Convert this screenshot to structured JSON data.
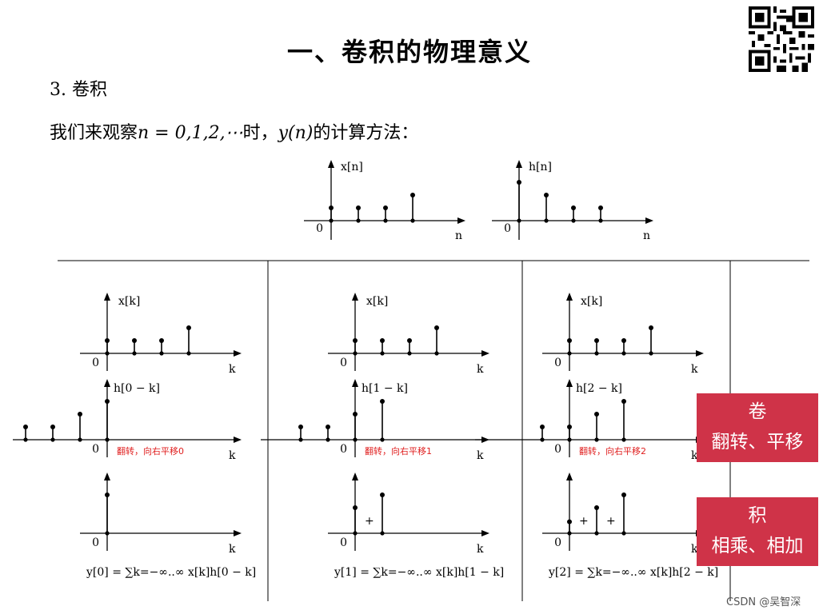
{
  "title": "一、卷积的物理意义",
  "subtitle": "3. 卷积",
  "description": {
    "prefix": "我们来观察",
    "math": "n = 0,1,2,⋯",
    "mid": "时，",
    "math2": "y(n)",
    "suffix": "的计算方法："
  },
  "top_plots": [
    {
      "label": "x[n]",
      "origin": "0",
      "axis": "n",
      "values": [
        0.5,
        0.5,
        0.5,
        1.0
      ],
      "start": 0
    },
    {
      "label": "h[n]",
      "origin": "0",
      "axis": "n",
      "values": [
        1.5,
        1.0,
        0.5,
        0.5
      ],
      "start": 0
    }
  ],
  "columns": [
    {
      "x_label": "x[k]",
      "h_label": "h[0 − k]",
      "flip_note": "翻转，向右平移0",
      "shift": 0,
      "sum_label": "y[0] = ∑k=−∞..∞ x[k]h[0 − k]",
      "plus_signs": []
    },
    {
      "x_label": "x[k]",
      "h_label": "h[1 − k]",
      "flip_note": "翻转，向右平移1",
      "shift": 1,
      "sum_label": "y[1] = ∑k=−∞..∞ x[k]h[1 − k]",
      "plus_signs": [
        "+"
      ]
    },
    {
      "x_label": "x[k]",
      "h_label": "h[2 − k]",
      "flip_note": "翻转，向右平移2",
      "shift": 2,
      "sum_label": "y[2] = ∑k=−∞..∞ x[k]h[2 − k]",
      "plus_signs": [
        "+",
        "+"
      ]
    }
  ],
  "axis_k": "k",
  "origin": "0",
  "box1": {
    "line1": "卷",
    "line2": "翻转、平移"
  },
  "box2": {
    "line1": "积",
    "line2": "相乘、相加"
  },
  "footer": "CSDN @吴智深",
  "colors": {
    "accent_red": "#cf3348",
    "note_red": "#e02020"
  }
}
